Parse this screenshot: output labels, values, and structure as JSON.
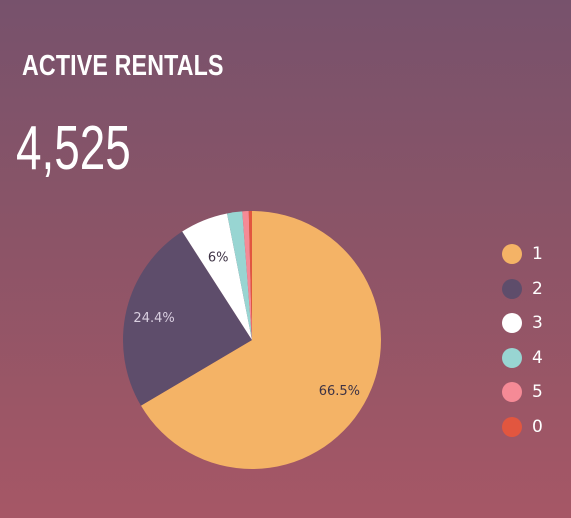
{
  "header": {
    "title": "ACTIVE RENTALS",
    "total": "4,525"
  },
  "chart_data": {
    "type": "pie",
    "title": "ACTIVE RENTALS",
    "categories": [
      "1",
      "2",
      "3",
      "4",
      "5",
      "0"
    ],
    "values": [
      66.5,
      24.4,
      6.0,
      1.9,
      0.8,
      0.4
    ],
    "value_unit": "%",
    "data_labels": [
      "66.5%",
      "24.4%",
      "6%",
      "",
      "",
      ""
    ],
    "colors": [
      "#f4b366",
      "#5e4d6b",
      "#ffffff",
      "#98d5d2",
      "#f58a96",
      "#e2563f"
    ],
    "legend_position": "right"
  }
}
